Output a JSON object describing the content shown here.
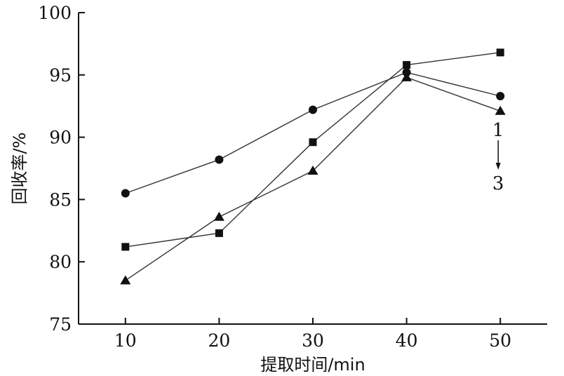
{
  "chart_data": {
    "type": "line",
    "xlabel": "提取时间/min",
    "ylabel": "回收率/%",
    "x": [
      10,
      20,
      30,
      40,
      50
    ],
    "xlim": [
      5,
      55
    ],
    "ylim": [
      75,
      100
    ],
    "xticks": [
      "10",
      "20",
      "30",
      "40",
      "50"
    ],
    "yticks": [
      "75",
      "80",
      "85",
      "90",
      "95",
      "100"
    ],
    "grid": false,
    "series": [
      {
        "marker": "circle",
        "values": [
          85.5,
          88.2,
          92.2,
          95.2,
          93.3
        ]
      },
      {
        "marker": "square",
        "values": [
          81.2,
          82.3,
          89.6,
          95.8,
          96.8
        ]
      },
      {
        "marker": "triangle",
        "values": [
          78.5,
          83.6,
          87.3,
          94.8,
          92.1
        ]
      }
    ],
    "annotation": {
      "top": "1",
      "bottom": "3"
    }
  }
}
